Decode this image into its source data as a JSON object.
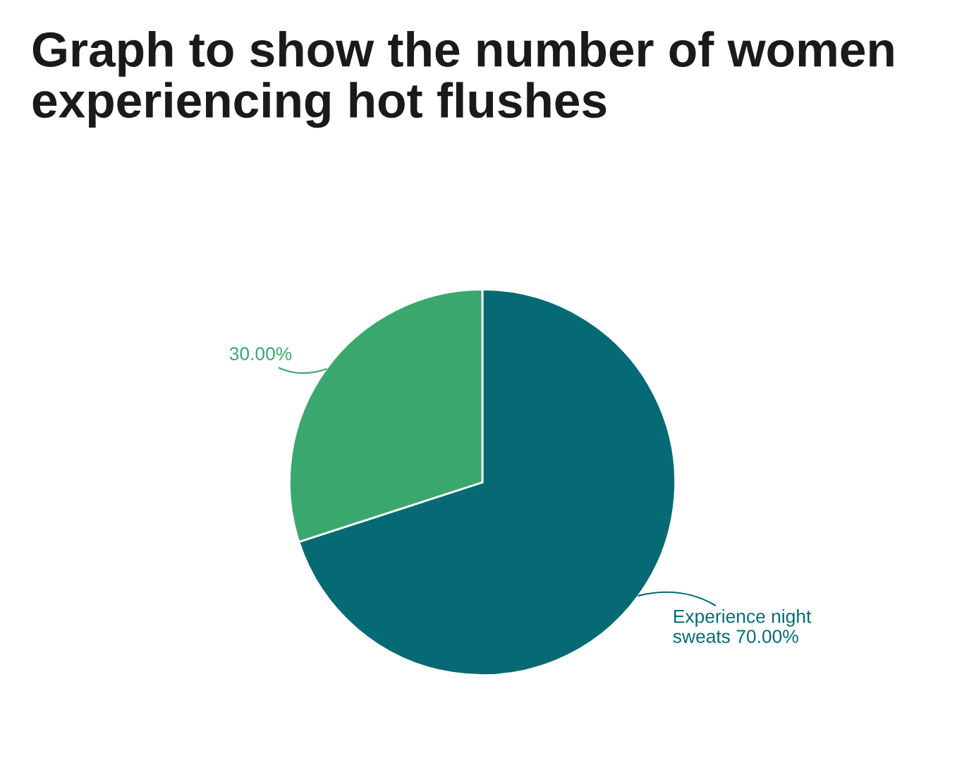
{
  "chart_data": {
    "type": "pie",
    "title": "Graph to show the number of women\nexperiencing hot flushes",
    "categories": [
      "Experience night sweats",
      null
    ],
    "values": [
      70,
      30
    ],
    "colors": [
      "#056a73",
      "#3aa86e"
    ],
    "value_labels": [
      "70.00%",
      "30.00%"
    ]
  }
}
